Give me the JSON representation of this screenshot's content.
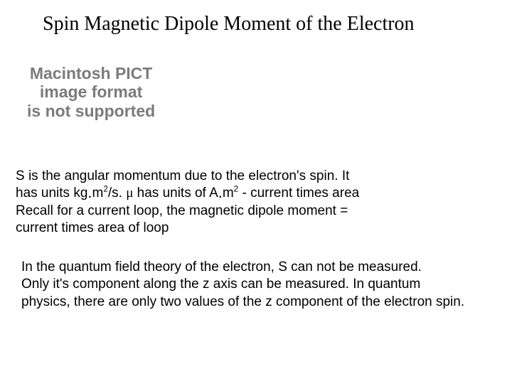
{
  "title": "Spin Magnetic Dipole Moment of the Electron",
  "pict": {
    "line1": "Macintosh PICT",
    "line2": "image format",
    "line3": "is not supported",
    "color": "#7b7b7b",
    "fontsize": 23,
    "fontweight": 700
  },
  "para1": {
    "l1_a": "S is the angular momentum due to the electron's spin. It",
    "l2_a": " has units kg",
    "l2_b": "m",
    "l2_sup1": "2",
    "l2_c": "/s. ",
    "l2_mu": "μ",
    "l2_d": " has units of A",
    "l2_e": "m",
    "l2_sup2": "2",
    "l2_f": " - current times area",
    "l3": "Recall for a current loop, the magnetic dipole moment =",
    "l4": "current times area of loop"
  },
  "para2": {
    "l1": "In the quantum field theory of the electron, S can not be measured.",
    "l2": "Only it's component along the z axis can be measured. In quantum",
    "l3": "physics, there are only two values of the z component of the electron spin."
  },
  "style": {
    "background": "#ffffff",
    "title_font": "Times New Roman",
    "title_fontsize": 28,
    "body_font": "Arial",
    "body_fontsize": 19,
    "text_color": "#000000"
  }
}
